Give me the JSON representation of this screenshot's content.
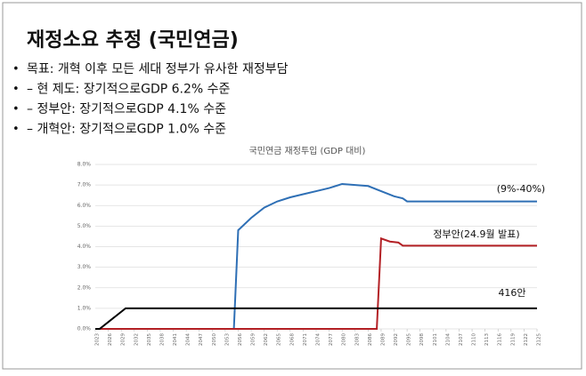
{
  "slide": {
    "title": "재정소요 추정 (국민연금)",
    "bullets": [
      "목표: 개혁 이후 모든 세대 정부가 유사한 재정부담",
      "– 현 제도: 장기적으로GDP 6.2% 수준",
      "– 정부안: 장기적으로GDP 4.1% 수준",
      "– 개혁안: 장기적으로GDP 1.0% 수준"
    ]
  },
  "chart_data": {
    "type": "line",
    "title": "국민연금 재정투입 (GDP 대비)",
    "xlim": [
      2023,
      2125
    ],
    "xticks": [
      2023,
      2026,
      2029,
      2032,
      2035,
      2038,
      2041,
      2044,
      2047,
      2050,
      2053,
      2056,
      2059,
      2062,
      2065,
      2068,
      2071,
      2074,
      2077,
      2080,
      2083,
      2086,
      2089,
      2092,
      2095,
      2098,
      2101,
      2104,
      2107,
      2110,
      2113,
      2116,
      2119,
      2122,
      2125
    ],
    "ylim": [
      0,
      8
    ],
    "yticks": [
      {
        "value": 0,
        "label": "0.0%"
      },
      {
        "value": 1,
        "label": "1.0%"
      },
      {
        "value": 2,
        "label": "2.0%"
      },
      {
        "value": 3,
        "label": "3.0%"
      },
      {
        "value": 4,
        "label": "4.0%"
      },
      {
        "value": 5,
        "label": "5.0%"
      },
      {
        "value": 6,
        "label": "6.0%"
      },
      {
        "value": 7,
        "label": "7.0%"
      },
      {
        "value": 8,
        "label": "8.0%"
      }
    ],
    "grid": true,
    "series": [
      {
        "name": "(9%-40%)",
        "color": "#2e6fb5",
        "x": [
          2023,
          2055,
          2056,
          2059,
          2062,
          2065,
          2068,
          2071,
          2074,
          2077,
          2080,
          2083,
          2086,
          2089,
          2092,
          2094,
          2095,
          2125
        ],
        "values": [
          0,
          0,
          4.8,
          5.4,
          5.9,
          6.2,
          6.4,
          6.55,
          6.7,
          6.85,
          7.05,
          7.0,
          6.95,
          6.7,
          6.45,
          6.35,
          6.2,
          6.2
        ]
      },
      {
        "name": "정부안(24.9월 발표)",
        "color": "#b32025",
        "x": [
          2023,
          2088,
          2089,
          2091,
          2093,
          2094,
          2125
        ],
        "values": [
          0,
          0,
          4.4,
          4.25,
          4.2,
          4.05,
          4.05
        ]
      },
      {
        "name": "416안",
        "color": "#000000",
        "x": [
          2023,
          2024,
          2030,
          2125
        ],
        "values": [
          0,
          0,
          1.0,
          1.0
        ]
      }
    ]
  }
}
